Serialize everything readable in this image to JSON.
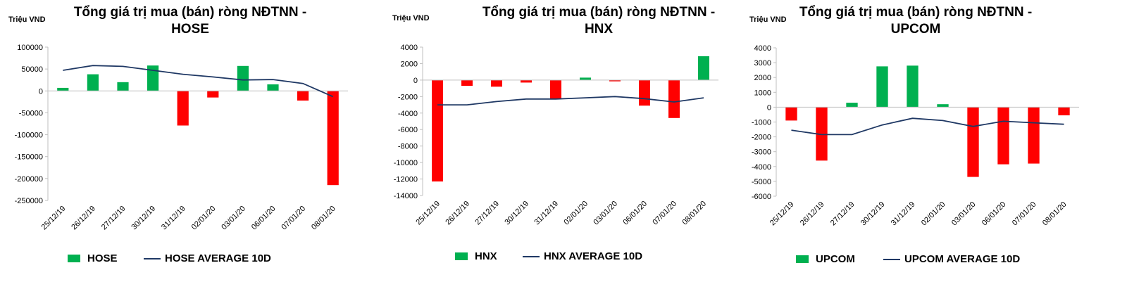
{
  "colors": {
    "up": "#00b050",
    "down": "#ff0000",
    "line": "#1f3864",
    "axis": "#bfbfbf"
  },
  "chart_data": [
    {
      "type": "bar",
      "title_line1": "Tổng giá trị mua (bán) ròng NĐTNN -",
      "title_line2": "HOSE",
      "unit_label": "Triệu VND",
      "categories": [
        "25/12/19",
        "26/12/19",
        "27/12/19",
        "30/12/19",
        "31/12/19",
        "02/01/20",
        "03/01/20",
        "06/01/20",
        "07/01/20",
        "08/01/20"
      ],
      "series": [
        {
          "name": "HOSE",
          "type": "bar",
          "values": [
            7000,
            38000,
            20000,
            58000,
            -79000,
            -15000,
            57000,
            15000,
            -22000,
            -215000
          ]
        },
        {
          "name": "HOSE AVERAGE 10D",
          "type": "line",
          "values": [
            47000,
            58000,
            56000,
            47000,
            38000,
            32000,
            25000,
            26000,
            17000,
            -13000
          ]
        }
      ],
      "ylim": [
        -250000,
        100000
      ],
      "yticks": [
        100000,
        50000,
        0,
        -50000,
        -100000,
        -150000,
        -200000,
        -250000
      ],
      "ytick_labels": [
        "100000",
        "50000",
        "0",
        "-50000",
        "-100000",
        "-150000",
        "-200000",
        "-250000"
      ],
      "grid": false,
      "legend": "bottom"
    },
    {
      "type": "bar",
      "title_line1": "Tổng giá trị mua (bán) ròng NĐTNN -",
      "title_line2": "HNX",
      "unit_label": "Triệu VND",
      "categories": [
        "25/12/19",
        "26/12/19",
        "27/12/19",
        "30/12/19",
        "31/12/19",
        "02/01/20",
        "03/01/20",
        "06/01/20",
        "07/01/20",
        "08/01/20"
      ],
      "series": [
        {
          "name": "HNX",
          "type": "bar",
          "values": [
            -12300,
            -700,
            -800,
            -300,
            -2300,
            300,
            -150,
            -3100,
            -4600,
            2900
          ]
        },
        {
          "name": "HNX AVERAGE 10D",
          "type": "line",
          "values": [
            -3000,
            -3000,
            -2600,
            -2300,
            -2300,
            -2150,
            -2000,
            -2250,
            -2650,
            -2150
          ]
        }
      ],
      "ylim": [
        -14000,
        4000
      ],
      "yticks": [
        4000,
        2000,
        0,
        -2000,
        -4000,
        -6000,
        -8000,
        -10000,
        -12000,
        -14000
      ],
      "ytick_labels": [
        "4000",
        "2000",
        "0",
        "-2000",
        "-4000",
        "-6000",
        "-8000",
        "-10000",
        "-12000",
        "-14000"
      ],
      "grid": false,
      "legend": "bottom"
    },
    {
      "type": "bar",
      "title_line1": "Tổng giá trị mua (bán) ròng NĐTNN -",
      "title_line2": "UPCOM",
      "unit_label": "Triệu VND",
      "categories": [
        "25/12/19",
        "26/12/19",
        "27/12/19",
        "30/12/19",
        "31/12/19",
        "02/01/20",
        "03/01/20",
        "06/01/20",
        "07/01/20",
        "08/01/20"
      ],
      "series": [
        {
          "name": "UPCOM",
          "type": "bar",
          "values": [
            -900,
            -3600,
            300,
            2750,
            2800,
            200,
            -4700,
            -3850,
            -3800,
            -550
          ]
        },
        {
          "name": "UPCOM AVERAGE 10D",
          "type": "line",
          "values": [
            -1550,
            -1850,
            -1850,
            -1200,
            -750,
            -900,
            -1300,
            -950,
            -1050,
            -1150
          ]
        }
      ],
      "ylim": [
        -6000,
        4000
      ],
      "yticks": [
        4000,
        3000,
        2000,
        1000,
        0,
        -1000,
        -2000,
        -3000,
        -4000,
        -5000,
        -6000
      ],
      "ytick_labels": [
        "4000",
        "3000",
        "2000",
        "1000",
        "0",
        "-1000",
        "-2000",
        "-3000",
        "-4000",
        "-5000",
        "-6000"
      ],
      "grid": false,
      "legend": "bottom"
    }
  ]
}
